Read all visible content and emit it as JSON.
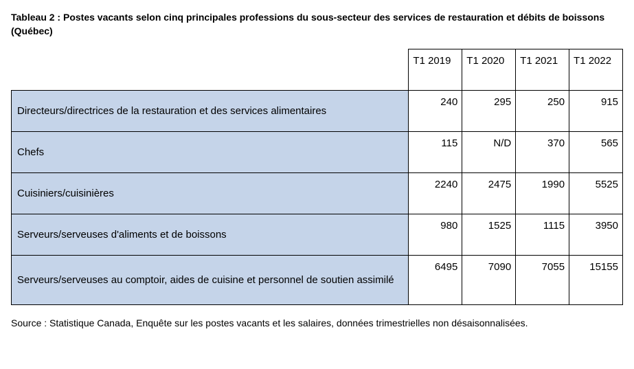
{
  "title": "Tableau 2 : Postes vacants selon cinq principales professions du sous-secteur des services de restauration et débits de boissons (Québec)",
  "table": {
    "type": "table",
    "columns": [
      "T1 2019",
      "T1 2020",
      "T1 2021",
      "T1 2022"
    ],
    "rows": [
      {
        "label": "Directeurs/directrices de la restauration et des services alimentaires",
        "values": [
          "240",
          "295",
          "250",
          "915"
        ]
      },
      {
        "label": "Chefs",
        "values": [
          "115",
          "N/D",
          "370",
          "565"
        ]
      },
      {
        "label": "Cuisiniers/cuisinières",
        "values": [
          "2240",
          "2475",
          "1990",
          "5525"
        ]
      },
      {
        "label": "Serveurs/serveuses d'aliments et de boissons",
        "values": [
          "980",
          "1525",
          "1115",
          "3950"
        ]
      },
      {
        "label": "Serveurs/serveuses au comptoir, aides de cuisine et personnel de soutien assimilé",
        "values": [
          "6495",
          "7090",
          "7055",
          "15155"
        ]
      }
    ],
    "styling": {
      "header_bg": "#ffffff",
      "label_cell_bg": "#c5d4e9",
      "value_cell_bg": "#ffffff",
      "border_color": "#000000",
      "font_family": "Arial",
      "header_fontsize": 15,
      "cell_fontsize": 15,
      "title_fontsize": 14,
      "title_fontweight": "bold",
      "title_color": "#000000",
      "value_align": "right",
      "label_align": "left",
      "col_widths": {
        "label": 580,
        "value": 78
      }
    }
  },
  "source": "Source : Statistique Canada, Enquête sur les postes vacants et les salaires, données trimestrielles non désaisonnalisées."
}
